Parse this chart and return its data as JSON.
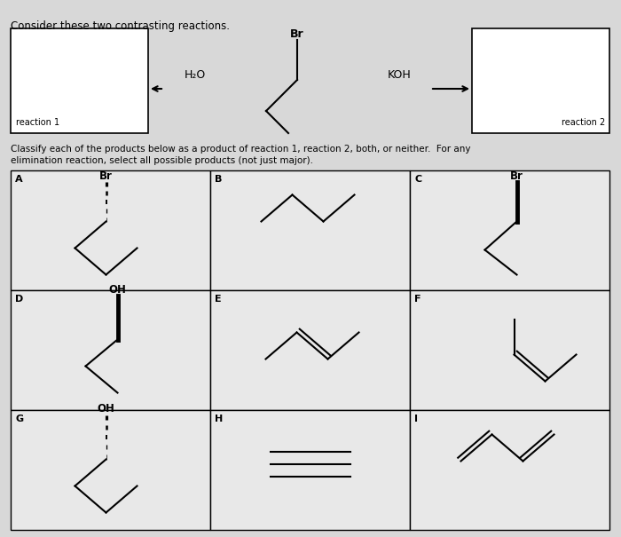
{
  "title": "Consider these two contrasting reactions.",
  "classify_text": "Classify each of the products below as a product of reaction 1, reaction 2, both, or neither.  For any\nelimination reaction, select all possible products (not just major).",
  "bg_color": "#e8e8e8",
  "panel_bg": "#f0f0f0",
  "cell_bg": "#e8e8e8",
  "reaction1_label": "reaction 1",
  "reaction2_label": "reaction 2",
  "h2o_label": "H₂O",
  "koh_label": "KOH",
  "cell_labels": [
    "A",
    "B",
    "C",
    "D",
    "E",
    "F",
    "G",
    "H",
    "I"
  ]
}
